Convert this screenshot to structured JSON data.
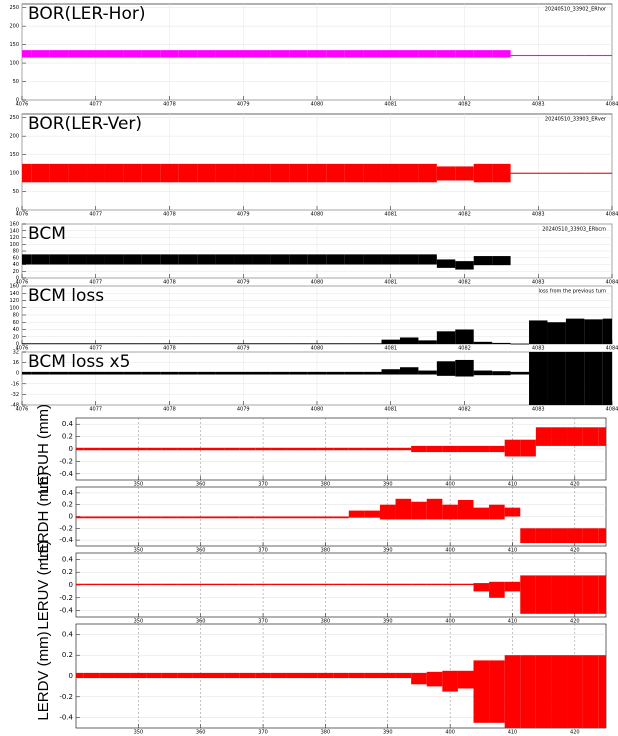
{
  "chart_data": [
    {
      "type": "band",
      "title": "BOR(LER-Hor)",
      "legend": "20240510_33902_ERhor",
      "color": "#ff00ff",
      "grid": true,
      "xlim": [
        4076,
        4084
      ],
      "xticks": [
        4076,
        4077,
        4078,
        4079,
        4080,
        4081,
        4082,
        4083,
        4084
      ],
      "ylim": [
        0,
        260
      ],
      "yticks": [
        0,
        50,
        100,
        150,
        200,
        250
      ],
      "x": [
        4076,
        4076.25,
        4076.5,
        4076.75,
        4077,
        4077.25,
        4077.5,
        4077.75,
        4078,
        4078.25,
        4078.5,
        4078.75,
        4079,
        4079.25,
        4079.5,
        4079.75,
        4080,
        4080.25,
        4080.5,
        4080.75,
        4081,
        4081.25,
        4081.5,
        4081.75,
        4082,
        4082.25,
        4082.5,
        4082.75,
        4083,
        4083.25,
        4083.5,
        4083.75,
        4084
      ],
      "lower": [
        115,
        115,
        115,
        115,
        115,
        115,
        115,
        115,
        115,
        115,
        115,
        115,
        115,
        115,
        115,
        115,
        115,
        115,
        115,
        115,
        115,
        115,
        115,
        115,
        115,
        115,
        115,
        119,
        119,
        119,
        119,
        119,
        119
      ],
      "upper": [
        135,
        135,
        135,
        135,
        135,
        135,
        135,
        135,
        135,
        135,
        135,
        135,
        135,
        135,
        135,
        135,
        135,
        135,
        135,
        135,
        135,
        135,
        135,
        135,
        135,
        135,
        135,
        122,
        122,
        122,
        122,
        122,
        122
      ]
    },
    {
      "type": "band",
      "title": "BOR(LER-Ver)",
      "legend": "20240510_33903_ERver",
      "color": "#ff0000",
      "grid": true,
      "xlim": [
        4076,
        4084
      ],
      "xticks": [
        4076,
        4077,
        4078,
        4079,
        4080,
        4081,
        4082,
        4083,
        4084
      ],
      "ylim": [
        0,
        260
      ],
      "yticks": [
        0,
        50,
        100,
        150,
        200,
        250
      ],
      "x": [
        4076,
        4076.25,
        4076.5,
        4076.75,
        4077,
        4077.25,
        4077.5,
        4077.75,
        4078,
        4078.25,
        4078.5,
        4078.75,
        4079,
        4079.25,
        4079.5,
        4079.75,
        4080,
        4080.25,
        4080.5,
        4080.75,
        4081,
        4081.25,
        4081.5,
        4081.75,
        4082,
        4082.25,
        4082.5,
        4082.75,
        4083,
        4083.25,
        4083.5,
        4083.75,
        4084
      ],
      "lower": [
        75,
        75,
        75,
        75,
        75,
        75,
        75,
        75,
        75,
        75,
        75,
        75,
        75,
        75,
        75,
        75,
        75,
        75,
        75,
        75,
        75,
        75,
        75,
        80,
        80,
        75,
        75,
        98,
        98,
        98,
        98,
        98,
        98
      ],
      "upper": [
        125,
        125,
        125,
        125,
        125,
        125,
        125,
        125,
        125,
        125,
        125,
        125,
        125,
        125,
        125,
        125,
        125,
        125,
        125,
        125,
        125,
        125,
        125,
        118,
        118,
        125,
        125,
        101,
        101,
        101,
        101,
        101,
        101
      ]
    },
    {
      "type": "band",
      "title": "BCM",
      "legend": "20240510_33903_ERbcm",
      "color": "#000000",
      "grid": true,
      "xlim": [
        4076,
        4084
      ],
      "xticks": [
        4076,
        4077,
        4078,
        4079,
        4080,
        4081,
        4082,
        4083,
        4084
      ],
      "ylim": [
        0,
        160
      ],
      "yticks": [
        0,
        20,
        40,
        60,
        80,
        100,
        120,
        140,
        160
      ],
      "x": [
        4076,
        4076.25,
        4076.5,
        4076.75,
        4077,
        4077.25,
        4077.5,
        4077.75,
        4078,
        4078.25,
        4078.5,
        4078.75,
        4079,
        4079.25,
        4079.5,
        4079.75,
        4080,
        4080.25,
        4080.5,
        4080.75,
        4081,
        4081.25,
        4081.5,
        4081.75,
        4082,
        4082.25,
        4082.5,
        4082.75,
        4083,
        4083.25,
        4083.5,
        4083.75,
        4084
      ],
      "lower": [
        40,
        40,
        40,
        40,
        40,
        40,
        40,
        40,
        40,
        40,
        40,
        40,
        40,
        40,
        40,
        40,
        40,
        40,
        40,
        40,
        40,
        40,
        40,
        30,
        25,
        38,
        38,
        null,
        null,
        null,
        null,
        null,
        null
      ],
      "upper": [
        70,
        70,
        70,
        70,
        70,
        70,
        70,
        70,
        70,
        70,
        70,
        70,
        70,
        70,
        70,
        70,
        70,
        70,
        70,
        70,
        70,
        70,
        70,
        55,
        50,
        65,
        65,
        null,
        null,
        null,
        null,
        null,
        null
      ]
    },
    {
      "type": "band",
      "title": "BCM loss",
      "legend": "loss from the previous turn",
      "color": "#000000",
      "grid": true,
      "xlim": [
        4076,
        4084
      ],
      "xticks": [
        4076,
        4077,
        4078,
        4079,
        4080,
        4081,
        4082,
        4083,
        4084
      ],
      "ylim": [
        0,
        160
      ],
      "yticks": [
        0,
        20,
        40,
        60,
        80,
        100,
        120,
        140,
        160
      ],
      "x": [
        4076,
        4076.25,
        4076.5,
        4076.75,
        4077,
        4077.25,
        4077.5,
        4077.75,
        4078,
        4078.25,
        4078.5,
        4078.75,
        4079,
        4079.25,
        4079.5,
        4079.75,
        4080,
        4080.25,
        4080.5,
        4080.75,
        4081,
        4081.25,
        4081.5,
        4081.75,
        4082,
        4082.25,
        4082.5,
        4082.75,
        4083,
        4083.25,
        4083.5,
        4083.75,
        4084
      ],
      "lower": [
        0,
        0,
        0,
        0,
        0,
        0,
        0,
        0,
        0,
        0,
        0,
        0,
        0,
        0,
        0,
        0,
        0,
        0,
        0,
        0,
        0,
        0,
        0,
        0,
        0,
        0,
        0,
        0,
        0,
        0,
        0,
        0,
        0
      ],
      "upper": [
        2,
        2,
        2,
        2,
        2,
        2,
        2,
        2,
        2,
        2,
        2,
        2,
        2,
        2,
        2,
        2,
        2,
        2,
        2,
        2,
        12,
        18,
        10,
        35,
        40,
        6,
        3,
        1,
        65,
        60,
        70,
        68,
        70
      ]
    },
    {
      "type": "band",
      "title": "BCM loss x5",
      "color": "#000000",
      "grid": true,
      "xlim": [
        4076,
        4084
      ],
      "xticks": [
        4076,
        4077,
        4078,
        4079,
        4080,
        4081,
        4082,
        4083,
        4084
      ],
      "ylim": [
        -48,
        32
      ],
      "yticks": [
        -48,
        -32,
        -16,
        0,
        16,
        32
      ],
      "x": [
        4076,
        4076.25,
        4076.5,
        4076.75,
        4077,
        4077.25,
        4077.5,
        4077.75,
        4078,
        4078.25,
        4078.5,
        4078.75,
        4079,
        4079.25,
        4079.5,
        4079.75,
        4080,
        4080.25,
        4080.5,
        4080.75,
        4081,
        4081.25,
        4081.5,
        4081.75,
        4082,
        4082.25,
        4082.5,
        4082.75,
        4083,
        4083.25,
        4083.5,
        4083.75,
        4084
      ],
      "lower": [
        -2,
        -2,
        -2,
        -2,
        -2,
        -2,
        -2,
        -2,
        -2,
        -2,
        -2,
        -2,
        -2,
        -2,
        -2,
        -2,
        -2,
        -2,
        -2,
        -2,
        -2,
        -2,
        -2,
        -4,
        -5,
        -3,
        -3,
        -2,
        -48,
        -48,
        -48,
        -48,
        -48
      ],
      "upper": [
        2,
        2,
        2,
        2,
        2,
        2,
        2,
        2,
        2,
        2,
        2,
        2,
        2,
        2,
        2,
        2,
        2,
        2,
        2,
        2,
        6,
        9,
        4,
        18,
        20,
        4,
        3,
        2,
        32,
        32,
        32,
        32,
        32
      ]
    },
    {
      "type": "band",
      "ylabel": "LERUH (mm)",
      "color": "#ff0000",
      "grid": true,
      "xlim": [
        340,
        425
      ],
      "xticks": [
        350,
        360,
        370,
        380,
        390,
        400,
        410,
        420
      ],
      "ylim": [
        -0.5,
        0.5
      ],
      "yticks": [
        -0.4,
        -0.2,
        0,
        0.2,
        0.4
      ],
      "x": [
        340,
        342.5,
        345,
        347.5,
        350,
        352.5,
        355,
        357.5,
        360,
        362.5,
        365,
        367.5,
        370,
        372.5,
        375,
        377.5,
        380,
        382.5,
        385,
        387.5,
        390,
        392.5,
        395,
        397.5,
        400,
        402.5,
        405,
        407.5,
        410,
        412.5,
        415,
        417.5,
        420,
        422.5,
        425
      ],
      "lower": [
        -0.02,
        -0.02,
        -0.02,
        -0.02,
        -0.02,
        -0.02,
        -0.02,
        -0.02,
        -0.02,
        -0.02,
        -0.02,
        -0.02,
        -0.02,
        -0.02,
        -0.02,
        -0.02,
        -0.02,
        -0.02,
        -0.02,
        -0.02,
        -0.02,
        -0.02,
        -0.05,
        -0.05,
        -0.05,
        -0.05,
        -0.05,
        -0.05,
        -0.12,
        -0.12,
        0.05,
        0.05,
        0.05,
        0.05,
        0.05
      ],
      "upper": [
        0.02,
        0.02,
        0.02,
        0.02,
        0.02,
        0.02,
        0.02,
        0.02,
        0.02,
        0.02,
        0.02,
        0.02,
        0.02,
        0.02,
        0.02,
        0.02,
        0.02,
        0.02,
        0.02,
        0.02,
        0.02,
        0.02,
        0.05,
        0.05,
        0.05,
        0.05,
        0.05,
        0.05,
        0.15,
        0.15,
        0.35,
        0.35,
        0.35,
        0.35,
        0.35
      ]
    },
    {
      "type": "band",
      "ylabel": "LERDH (mm)",
      "color": "#ff0000",
      "grid": true,
      "xlim": [
        340,
        425
      ],
      "xticks": [
        350,
        360,
        370,
        380,
        390,
        400,
        410,
        420
      ],
      "ylim": [
        -0.5,
        0.5
      ],
      "yticks": [
        -0.4,
        -0.2,
        0,
        0.2,
        0.4
      ],
      "x": [
        340,
        342.5,
        345,
        347.5,
        350,
        352.5,
        355,
        357.5,
        360,
        362.5,
        365,
        367.5,
        370,
        372.5,
        375,
        377.5,
        380,
        382.5,
        385,
        387.5,
        390,
        392.5,
        395,
        397.5,
        400,
        402.5,
        405,
        407.5,
        410,
        412.5,
        415,
        417.5,
        420,
        422.5,
        425
      ],
      "lower": [
        -0.03,
        -0.03,
        -0.03,
        -0.03,
        -0.03,
        -0.03,
        -0.03,
        -0.03,
        -0.03,
        -0.03,
        -0.03,
        -0.03,
        -0.03,
        -0.03,
        -0.03,
        -0.03,
        -0.03,
        -0.03,
        -0.02,
        -0.02,
        -0.05,
        -0.05,
        -0.05,
        -0.05,
        -0.05,
        -0.05,
        -0.05,
        -0.05,
        0,
        -0.45,
        -0.45,
        -0.45,
        -0.45,
        -0.45,
        -0.45
      ],
      "upper": [
        0,
        0,
        0,
        0,
        0,
        0,
        0,
        0,
        0,
        0,
        0,
        0,
        0,
        0,
        0,
        0,
        0,
        0,
        0.1,
        0.1,
        0.2,
        0.3,
        0.25,
        0.3,
        0.2,
        0.28,
        0.15,
        0.2,
        0.15,
        -0.2,
        -0.2,
        -0.2,
        -0.2,
        -0.2,
        -0.2
      ]
    },
    {
      "type": "band",
      "ylabel": "LERUV (mm)",
      "color": "#ff0000",
      "grid": true,
      "xlim": [
        340,
        425
      ],
      "xticks": [
        350,
        360,
        370,
        380,
        390,
        400,
        410,
        420
      ],
      "ylim": [
        -0.5,
        0.5
      ],
      "yticks": [
        -0.4,
        -0.2,
        0,
        0.2,
        0.4
      ],
      "x": [
        340,
        342.5,
        345,
        347.5,
        350,
        352.5,
        355,
        357.5,
        360,
        362.5,
        365,
        367.5,
        370,
        372.5,
        375,
        377.5,
        380,
        382.5,
        385,
        387.5,
        390,
        392.5,
        395,
        397.5,
        400,
        402.5,
        405,
        407.5,
        410,
        412.5,
        415,
        417.5,
        420,
        422.5,
        425
      ],
      "lower": [
        0,
        0,
        0,
        0,
        0,
        0,
        0,
        0,
        0,
        0,
        0,
        0,
        0,
        0,
        0,
        0,
        0,
        0,
        0,
        0,
        0,
        0,
        0,
        0,
        0,
        0,
        -0.1,
        -0.2,
        -0.1,
        -0.45,
        -0.45,
        -0.45,
        -0.45,
        -0.45,
        -0.45
      ],
      "upper": [
        0.02,
        0.02,
        0.02,
        0.02,
        0.02,
        0.02,
        0.02,
        0.02,
        0.02,
        0.02,
        0.02,
        0.02,
        0.02,
        0.02,
        0.02,
        0.02,
        0.02,
        0.02,
        0.02,
        0.02,
        0.02,
        0.02,
        0.02,
        0.02,
        0.02,
        0.02,
        0.03,
        0.05,
        0.05,
        0.15,
        0.15,
        0.15,
        0.15,
        0.15,
        0.15
      ]
    },
    {
      "type": "band",
      "ylabel": "LERDV (mm)",
      "color": "#ff0000",
      "grid": true,
      "xlim": [
        340,
        425
      ],
      "xticks": [
        350,
        360,
        370,
        380,
        390,
        400,
        410,
        420
      ],
      "ylim": [
        -0.5,
        0.5
      ],
      "yticks": [
        -0.4,
        -0.2,
        0,
        0.2,
        0.4
      ],
      "x": [
        340,
        342.5,
        345,
        347.5,
        350,
        352.5,
        355,
        357.5,
        360,
        362.5,
        365,
        367.5,
        370,
        372.5,
        375,
        377.5,
        380,
        382.5,
        385,
        387.5,
        390,
        392.5,
        395,
        397.5,
        400,
        402.5,
        405,
        407.5,
        410,
        412.5,
        415,
        417.5,
        420,
        422.5,
        425
      ],
      "lower": [
        -0.02,
        -0.02,
        -0.02,
        -0.02,
        -0.02,
        -0.02,
        -0.02,
        -0.02,
        -0.02,
        -0.02,
        -0.02,
        -0.02,
        -0.02,
        -0.02,
        -0.02,
        -0.02,
        -0.02,
        -0.02,
        -0.02,
        -0.02,
        -0.02,
        -0.02,
        -0.08,
        -0.1,
        -0.15,
        -0.12,
        -0.45,
        -0.45,
        -0.5,
        -0.5,
        -0.5,
        -0.5,
        -0.5,
        -0.5,
        -0.5
      ],
      "upper": [
        0.03,
        0.03,
        0.03,
        0.03,
        0.03,
        0.03,
        0.03,
        0.03,
        0.03,
        0.03,
        0.03,
        0.03,
        0.03,
        0.03,
        0.03,
        0.03,
        0.03,
        0.03,
        0.03,
        0.03,
        0.03,
        0.03,
        0.03,
        0.04,
        0.05,
        0.05,
        0.15,
        0.15,
        0.2,
        0.2,
        0.2,
        0.2,
        0.2,
        0.2,
        0.2
      ]
    }
  ]
}
